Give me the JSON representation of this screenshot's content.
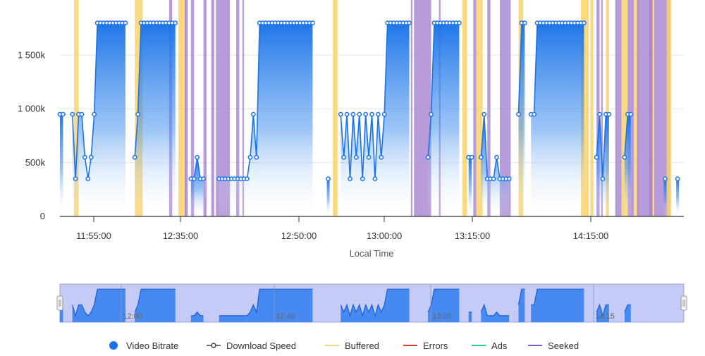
{
  "chart_data": {
    "type": "line",
    "x_axis": {
      "label": "Local Time",
      "tick_labels": [
        "11:55:00",
        "12:35:00",
        "12:50:00",
        "13:00:00",
        "13:15:00",
        "14:15:00"
      ]
    },
    "y_axis": {
      "tick_labels": [
        "0",
        "500k",
        "1 000k",
        "1 500k"
      ],
      "tick_values": [
        0,
        500,
        1000,
        1500
      ],
      "unit": "k",
      "ylim": [
        0,
        2000
      ]
    },
    "grid": true,
    "series": [
      {
        "name": "Video Bitrate",
        "color": "#1a73e8",
        "marker": "hollow-circle",
        "area_fill": true,
        "segments": [
          [
            [
              0,
              950
            ],
            [
              1,
              950
            ]
          ],
          [
            [
              4,
              950
            ],
            [
              5,
              350
            ],
            [
              6,
              950
            ],
            [
              7,
              950
            ],
            [
              8,
              550
            ],
            [
              9,
              350
            ],
            [
              10,
              550
            ],
            [
              11,
              950
            ],
            [
              12,
              1800
            ],
            [
              13,
              1800
            ],
            [
              14,
              1800
            ],
            [
              15,
              1800
            ],
            [
              16,
              1800
            ],
            [
              17,
              1800
            ],
            [
              18,
              1800
            ],
            [
              19,
              1800
            ],
            [
              20,
              1800
            ],
            [
              21,
              1800
            ]
          ],
          [
            [
              24,
              550
            ],
            [
              25,
              950
            ],
            [
              26,
              1800
            ],
            [
              27,
              1800
            ],
            [
              28,
              1800
            ],
            [
              29,
              1800
            ],
            [
              30,
              1800
            ],
            [
              31,
              1800
            ],
            [
              32,
              1800
            ],
            [
              33,
              1800
            ],
            [
              34,
              1800
            ],
            [
              35,
              1800
            ],
            [
              36,
              1800
            ],
            [
              37,
              1800
            ]
          ],
          [
            [
              42,
              350
            ],
            [
              43,
              350
            ],
            [
              44,
              550
            ],
            [
              45,
              350
            ],
            [
              46,
              350
            ]
          ],
          [
            [
              51,
              350
            ],
            [
              52,
              350
            ],
            [
              53,
              350
            ],
            [
              54,
              350
            ],
            [
              55,
              350
            ],
            [
              56,
              350
            ],
            [
              57,
              350
            ],
            [
              58,
              350
            ],
            [
              59,
              350
            ],
            [
              60,
              350
            ],
            [
              61,
              550
            ],
            [
              62,
              950
            ],
            [
              63,
              550
            ],
            [
              64,
              1800
            ],
            [
              65,
              1800
            ],
            [
              66,
              1800
            ],
            [
              67,
              1800
            ],
            [
              68,
              1800
            ],
            [
              69,
              1800
            ],
            [
              70,
              1800
            ],
            [
              71,
              1800
            ],
            [
              72,
              1800
            ],
            [
              73,
              1800
            ],
            [
              74,
              1800
            ],
            [
              75,
              1800
            ],
            [
              76,
              1800
            ],
            [
              77,
              1800
            ],
            [
              78,
              1800
            ],
            [
              79,
              1800
            ],
            [
              80,
              1800
            ],
            [
              81,
              1800
            ]
          ],
          [
            [
              86,
              350
            ]
          ],
          [
            [
              90,
              950
            ],
            [
              91,
              550
            ],
            [
              92,
              950
            ],
            [
              93,
              350
            ],
            [
              94,
              950
            ],
            [
              95,
              550
            ],
            [
              96,
              950
            ],
            [
              97,
              350
            ],
            [
              98,
              950
            ],
            [
              99,
              550
            ],
            [
              100,
              950
            ],
            [
              101,
              350
            ],
            [
              102,
              950
            ],
            [
              103,
              550
            ],
            [
              104,
              950
            ],
            [
              105,
              1800
            ],
            [
              106,
              1800
            ],
            [
              107,
              1800
            ],
            [
              108,
              1800
            ],
            [
              109,
              1800
            ],
            [
              110,
              1800
            ],
            [
              111,
              1800
            ],
            [
              112,
              1800
            ]
          ],
          [
            [
              118,
              550
            ],
            [
              119,
              950
            ],
            [
              120,
              1800
            ],
            [
              121,
              1800
            ],
            [
              122,
              1800
            ],
            [
              123,
              1800
            ],
            [
              124,
              1800
            ],
            [
              125,
              1800
            ],
            [
              126,
              1800
            ],
            [
              127,
              1800
            ],
            [
              128,
              1800
            ]
          ],
          [
            [
              131,
              550
            ],
            [
              132,
              550
            ]
          ],
          [
            [
              135,
              550
            ],
            [
              136,
              950
            ],
            [
              137,
              350
            ],
            [
              138,
              350
            ],
            [
              139,
              350
            ],
            [
              140,
              550
            ],
            [
              141,
              350
            ],
            [
              142,
              350
            ],
            [
              143,
              350
            ],
            [
              144,
              350
            ]
          ],
          [
            [
              147,
              950
            ],
            [
              148,
              1800
            ],
            [
              149,
              1800
            ]
          ],
          [
            [
              151,
              950
            ],
            [
              152,
              950
            ],
            [
              153,
              1800
            ],
            [
              154,
              1800
            ],
            [
              155,
              1800
            ],
            [
              156,
              1800
            ],
            [
              157,
              1800
            ],
            [
              158,
              1800
            ],
            [
              159,
              1800
            ],
            [
              160,
              1800
            ],
            [
              161,
              1800
            ],
            [
              162,
              1800
            ],
            [
              163,
              1800
            ],
            [
              164,
              1800
            ],
            [
              165,
              1800
            ],
            [
              166,
              1800
            ],
            [
              167,
              1800
            ],
            [
              168,
              1800
            ]
          ],
          [
            [
              172,
              550
            ],
            [
              173,
              950
            ],
            [
              174,
              350
            ],
            [
              175,
              950
            ],
            [
              176,
              950
            ]
          ],
          [
            [
              181,
              550
            ],
            [
              182,
              950
            ],
            [
              183,
              950
            ]
          ],
          [
            [
              194,
              350
            ]
          ],
          [
            [
              198,
              350
            ]
          ]
        ]
      },
      {
        "name": "Download Speed",
        "color": "#37474f",
        "marker": "circle-line",
        "values": []
      }
    ],
    "x_domain": [
      0,
      200
    ],
    "bands": [
      {
        "type": "Buffered",
        "x0": 4.5,
        "x1": 6.0,
        "color": "#f9d26b"
      },
      {
        "type": "Buffered",
        "x0": 24.0,
        "x1": 26.5,
        "color": "#f9d26b"
      },
      {
        "type": "Seeked",
        "x0": 35.0,
        "x1": 36.0,
        "color": "#9c74cc"
      },
      {
        "type": "Buffered",
        "x0": 38.0,
        "x1": 40.5,
        "color": "#f9d26b"
      },
      {
        "type": "Seeked",
        "x0": 40.0,
        "x1": 41.0,
        "color": "#9c74cc"
      },
      {
        "type": "Seeked",
        "x0": 42.0,
        "x1": 43.0,
        "color": "#9c74cc"
      },
      {
        "type": "Seeked",
        "x0": 46.0,
        "x1": 47.0,
        "color": "#9c74cc"
      },
      {
        "type": "Seeked",
        "x0": 48.5,
        "x1": 49.5,
        "color": "#9c74cc"
      },
      {
        "type": "Seeked",
        "x0": 50.0,
        "x1": 54.5,
        "color": "#9c74cc"
      },
      {
        "type": "Seeked",
        "x0": 56.5,
        "x1": 57.5,
        "color": "#9c74cc"
      },
      {
        "type": "Seeked",
        "x0": 58.5,
        "x1": 59.0,
        "color": "#9c74cc"
      },
      {
        "type": "Buffered",
        "x0": 87.5,
        "x1": 89.0,
        "color": "#f9d26b"
      },
      {
        "type": "Seeked",
        "x0": 112.5,
        "x1": 113.0,
        "color": "#9c74cc"
      },
      {
        "type": "Seeked",
        "x0": 113.5,
        "x1": 114.5,
        "color": "#9c74cc"
      },
      {
        "type": "Seeked",
        "x0": 114.5,
        "x1": 119.0,
        "color": "#9c74cc"
      },
      {
        "type": "Seeked",
        "x0": 121.5,
        "x1": 122.0,
        "color": "#9c74cc"
      },
      {
        "type": "Buffered",
        "x0": 129.0,
        "x1": 130.5,
        "color": "#f9d26b"
      },
      {
        "type": "Seeked",
        "x0": 132.5,
        "x1": 133.5,
        "color": "#9c74cc"
      },
      {
        "type": "Buffered",
        "x0": 133.5,
        "x1": 135.5,
        "color": "#f9d26b"
      },
      {
        "type": "Seeked",
        "x0": 137.0,
        "x1": 138.0,
        "color": "#9c74cc"
      },
      {
        "type": "Seeked",
        "x0": 141.0,
        "x1": 144.5,
        "color": "#9c74cc"
      },
      {
        "type": "Buffered",
        "x0": 147.0,
        "x1": 148.5,
        "color": "#f9d26b"
      },
      {
        "type": "Buffered",
        "x0": 167.0,
        "x1": 169.5,
        "color": "#f9d26b"
      },
      {
        "type": "Buffered",
        "x0": 170.0,
        "x1": 171.0,
        "color": "#f9d26b"
      },
      {
        "type": "Seeked",
        "x0": 172.0,
        "x1": 173.0,
        "color": "#9c74cc"
      },
      {
        "type": "Seeked",
        "x0": 173.5,
        "x1": 174.0,
        "color": "#9c74cc"
      },
      {
        "type": "Buffered",
        "x0": 175.0,
        "x1": 176.0,
        "color": "#f9d26b"
      },
      {
        "type": "Seeked",
        "x0": 178.0,
        "x1": 180.0,
        "color": "#9c74cc"
      },
      {
        "type": "Buffered",
        "x0": 180.0,
        "x1": 182.0,
        "color": "#f9d26b"
      },
      {
        "type": "Seeked",
        "x0": 182.0,
        "x1": 184.0,
        "color": "#9c74cc"
      },
      {
        "type": "Buffered",
        "x0": 184.0,
        "x1": 185.5,
        "color": "#f9d26b"
      },
      {
        "type": "Seeked",
        "x0": 185.0,
        "x1": 189.5,
        "color": "#9c74cc"
      },
      {
        "type": "Buffered",
        "x0": 189.5,
        "x1": 190.5,
        "color": "#f9d26b"
      },
      {
        "type": "Seeked",
        "x0": 189.0,
        "x1": 190.0,
        "color": "#9c74cc"
      },
      {
        "type": "Seeked",
        "x0": 190.5,
        "x1": 195.5,
        "color": "#9c74cc"
      },
      {
        "type": "Buffered",
        "x0": 194.5,
        "x1": 196.0,
        "color": "#f9d26b"
      }
    ],
    "navigator": {
      "labels": [
        "12:00",
        "12:40",
        "13:05",
        "14:15"
      ]
    },
    "legend": {
      "placement": "bottom",
      "items": [
        {
          "label": "Video Bitrate",
          "color": "#1a73e8",
          "symbol": "dot"
        },
        {
          "label": "Download Speed",
          "color": "#37474f",
          "symbol": "line-dot"
        },
        {
          "label": "Buffered",
          "color": "#f5d47a",
          "symbol": "line"
        },
        {
          "label": "Errors",
          "color": "#e53935",
          "symbol": "line"
        },
        {
          "label": "Ads",
          "color": "#26c6a0",
          "symbol": "line"
        },
        {
          "label": "Seeked",
          "color": "#7e57c2",
          "symbol": "line"
        }
      ]
    }
  }
}
